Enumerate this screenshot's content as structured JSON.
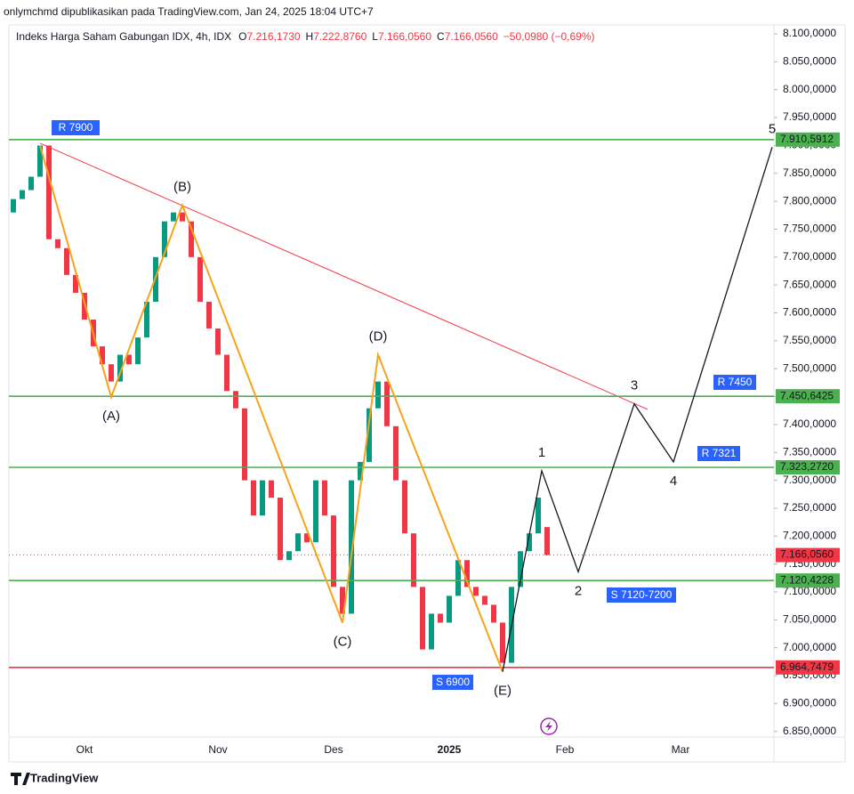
{
  "chart_data": {
    "type": "candlestick",
    "header": "onlymchmd dipublikasikan pada TradingView.com, Jan 24, 2025 18:04 UTC+7",
    "title": "Indeks Harga Saham Gabungan IDX, 4h, IDX",
    "ohlc": [
      {
        "key": "O",
        "label": "7.216,1730"
      },
      {
        "key": "H",
        "label": "7.222,8760"
      },
      {
        "key": "L",
        "label": "7.166,0560"
      },
      {
        "key": "C",
        "label": "7.166,0560"
      }
    ],
    "change": "−50,0980 (−0,69%)",
    "brand": "TradingView",
    "up_color": "#089981",
    "down_color": "#f23645",
    "categories": [
      null,
      null,
      null,
      null,
      null,
      null,
      null,
      null,
      "Okt",
      null,
      null,
      null,
      null,
      null,
      null,
      null,
      null,
      null,
      null,
      null,
      null,
      null,
      null,
      "Nov",
      null,
      null,
      null,
      null,
      null,
      null,
      null,
      null,
      null,
      null,
      null,
      null,
      "Des",
      null,
      null,
      null,
      null,
      null,
      null,
      null,
      null,
      null,
      null,
      null,
      null,
      "2025",
      null,
      null,
      null,
      null,
      null,
      null,
      null,
      null,
      null,
      null,
      null,
      null,
      "Feb",
      null,
      null,
      null,
      null,
      null,
      null,
      null,
      null,
      null,
      null,
      null,
      null,
      "Mar",
      null,
      null,
      null,
      null,
      null,
      null,
      null,
      null,
      null,
      null
    ],
    "open": [
      7780,
      7804,
      7820,
      7844,
      7900,
      7732,
      7716,
      7668,
      7636,
      7588,
      7540,
      7508,
      7477,
      7525,
      7508,
      7556,
      7620,
      7700,
      7764,
      7780,
      7764,
      7700,
      7620,
      7572,
      7525,
      7460,
      7429,
      7300,
      7237,
      7300,
      7269,
      7157,
      7173,
      7205,
      7189,
      7300,
      7237,
      7109,
      7061,
      7300,
      7333,
      7429,
      7477,
      7397,
      7300,
      7205,
      7109,
      6997,
      7061,
      7045,
      7093,
      7157,
      7109,
      7093,
      7077,
      7045,
      6973,
      7109,
      7173,
      7205,
      7216.173,
      null,
      null,
      null,
      null,
      null,
      null,
      null,
      null,
      null,
      null,
      null,
      null,
      null,
      null,
      null,
      null,
      null,
      null,
      null,
      null,
      null,
      null,
      null,
      null,
      null
    ],
    "close": [
      7804,
      7820,
      7844,
      7900,
      7732,
      7716,
      7668,
      7636,
      7588,
      7540,
      7508,
      7477,
      7525,
      7508,
      7556,
      7620,
      7700,
      7764,
      7780,
      7764,
      7700,
      7620,
      7572,
      7525,
      7460,
      7429,
      7300,
      7237,
      7300,
      7269,
      7157,
      7173,
      7205,
      7189,
      7300,
      7237,
      7109,
      7061,
      7300,
      7333,
      7429,
      7477,
      7397,
      7300,
      7205,
      7109,
      6997,
      7061,
      7045,
      7093,
      7157,
      7109,
      7093,
      7077,
      7045,
      6973,
      7109,
      7173,
      7205,
      7269,
      7166.056,
      null,
      null,
      null,
      null,
      null,
      null,
      null,
      null,
      null,
      null,
      null,
      null,
      null,
      null,
      null,
      null,
      null,
      null,
      null,
      null,
      null,
      null,
      null,
      null,
      null
    ],
    "ylim": [
      6840,
      8116
    ],
    "yticks": [
      {
        "value": 8100,
        "label": "8.100,0000"
      },
      {
        "value": 8050,
        "label": "8.050,0000"
      },
      {
        "value": 8000,
        "label": "8.000,0000"
      },
      {
        "value": 7950,
        "label": "7.950,0000"
      },
      {
        "value": 7900,
        "label": "7.900,0000"
      },
      {
        "value": 7850,
        "label": "7.850,0000"
      },
      {
        "value": 7800,
        "label": "7.800,0000"
      },
      {
        "value": 7750,
        "label": "7.750,0000"
      },
      {
        "value": 7700,
        "label": "7.700,0000"
      },
      {
        "value": 7650,
        "label": "7.650,0000"
      },
      {
        "value": 7600,
        "label": "7.600,0000"
      },
      {
        "value": 7550,
        "label": "7.550,0000"
      },
      {
        "value": 7500,
        "label": "7.500,0000"
      },
      {
        "value": 7450,
        "label": "7.450,0000"
      },
      {
        "value": 7400,
        "label": "7.400,0000"
      },
      {
        "value": 7350,
        "label": "7.350,0000"
      },
      {
        "value": 7300,
        "label": "7.300,0000"
      },
      {
        "value": 7250,
        "label": "7.250,0000"
      },
      {
        "value": 7200,
        "label": "7.200,0000"
      },
      {
        "value": 7150,
        "label": "7.150,0000"
      },
      {
        "value": 7100,
        "label": "7.100,0000"
      },
      {
        "value": 7050,
        "label": "7.050,0000"
      },
      {
        "value": 7000,
        "label": "7.000,0000"
      },
      {
        "value": 6950,
        "label": "6.950,0000"
      },
      {
        "value": 6900,
        "label": "6.900,0000"
      },
      {
        "value": 6850,
        "label": "6.850,0000"
      }
    ],
    "levels": [
      {
        "value": 7910.5912,
        "label": "7.910,5912",
        "color": "#4caf50",
        "style": "solid"
      },
      {
        "value": 7450.6425,
        "label": "7.450,6425",
        "color": "#4caf50",
        "style": "solid"
      },
      {
        "value": 7323.272,
        "label": "7.323,2720",
        "color": "#4caf50",
        "style": "solid"
      },
      {
        "value": 7120.4228,
        "label": "7.120,4228",
        "color": "#4caf50",
        "style": "solid"
      },
      {
        "value": 6964.7479,
        "label": "6.964,7479",
        "color": "#f23645",
        "style": "solid"
      },
      {
        "value": 7166.056,
        "label": "7.166,0560",
        "color": "#f23645",
        "style": "dotted"
      }
    ],
    "trendline": {
      "color": "#f23645",
      "bars": [
        3,
        71.3
      ],
      "values": [
        7904,
        7427
      ]
    },
    "waves": [
      {
        "color": "#f7a21b",
        "bars": [
          3,
          11,
          19,
          37,
          41,
          55
        ],
        "values": [
          7900,
          7449,
          7793,
          7045,
          7525,
          6957
        ],
        "labels": [
          null,
          "(A)",
          "(B)",
          "(C)",
          "(D)",
          "(E)"
        ]
      },
      {
        "color": "#131722",
        "bars": [
          55,
          59.4,
          63.5,
          69.8,
          74.2,
          85.3
        ],
        "values": [
          6957,
          7317,
          7136,
          7437,
          7333,
          7897
        ],
        "labels": [
          null,
          "1",
          "2",
          "3",
          "4",
          "5"
        ]
      }
    ],
    "annotations": [
      "R 7900",
      "R 7450",
      "R 7321",
      "S 7120-7200",
      "S 6900"
    ]
  }
}
